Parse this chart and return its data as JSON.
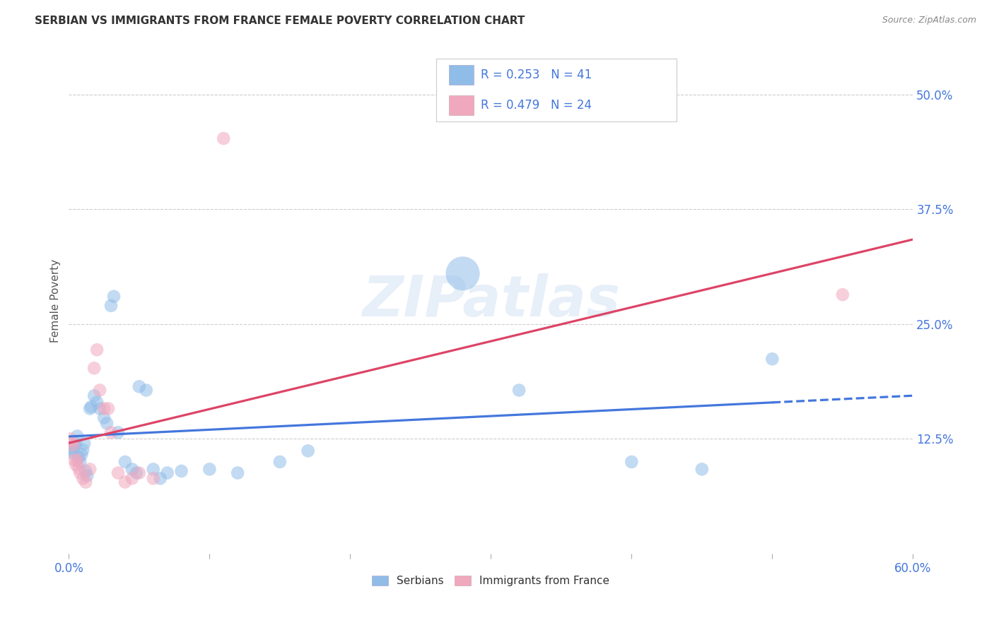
{
  "title": "SERBIAN VS IMMIGRANTS FROM FRANCE FEMALE POVERTY CORRELATION CHART",
  "source": "Source: ZipAtlas.com",
  "ylabel": "Female Poverty",
  "xlim": [
    0.0,
    0.6
  ],
  "ylim": [
    0.0,
    0.55
  ],
  "yticks": [
    0.125,
    0.25,
    0.375,
    0.5
  ],
  "ytick_labels": [
    "12.5%",
    "25.0%",
    "37.5%",
    "50.0%"
  ],
  "xticks": [
    0.0,
    0.1,
    0.2,
    0.3,
    0.4,
    0.5,
    0.6
  ],
  "xtick_labels": [
    "0.0%",
    "",
    "",
    "",
    "",
    "",
    "60.0%"
  ],
  "grid_color": "#cccccc",
  "background_color": "#ffffff",
  "serbian_color": "#90bce8",
  "french_color": "#f0a8be",
  "trend_serbian_color": "#4477dd",
  "trend_french_color": "#dd4466",
  "tick_label_color": "#4477dd",
  "watermark_text": "ZIPatlas",
  "serbian_points": [
    [
      0.002,
      0.115
    ],
    [
      0.003,
      0.112
    ],
    [
      0.004,
      0.118
    ],
    [
      0.005,
      0.12
    ],
    [
      0.006,
      0.128
    ],
    [
      0.007,
      0.105
    ],
    [
      0.008,
      0.1
    ],
    [
      0.009,
      0.108
    ],
    [
      0.01,
      0.113
    ],
    [
      0.011,
      0.12
    ],
    [
      0.012,
      0.09
    ],
    [
      0.013,
      0.085
    ],
    [
      0.015,
      0.158
    ],
    [
      0.016,
      0.16
    ],
    [
      0.018,
      0.172
    ],
    [
      0.02,
      0.165
    ],
    [
      0.022,
      0.158
    ],
    [
      0.025,
      0.148
    ],
    [
      0.027,
      0.142
    ],
    [
      0.03,
      0.27
    ],
    [
      0.032,
      0.28
    ],
    [
      0.035,
      0.132
    ],
    [
      0.04,
      0.1
    ],
    [
      0.045,
      0.092
    ],
    [
      0.048,
      0.088
    ],
    [
      0.05,
      0.182
    ],
    [
      0.055,
      0.178
    ],
    [
      0.06,
      0.092
    ],
    [
      0.065,
      0.082
    ],
    [
      0.07,
      0.088
    ],
    [
      0.08,
      0.09
    ],
    [
      0.1,
      0.092
    ],
    [
      0.12,
      0.088
    ],
    [
      0.15,
      0.1
    ],
    [
      0.17,
      0.112
    ],
    [
      0.28,
      0.305
    ],
    [
      0.32,
      0.178
    ],
    [
      0.4,
      0.1
    ],
    [
      0.45,
      0.092
    ],
    [
      0.5,
      0.212
    ],
    [
      0.001,
      0.11
    ]
  ],
  "french_points": [
    [
      0.002,
      0.122
    ],
    [
      0.003,
      0.118
    ],
    [
      0.004,
      0.102
    ],
    [
      0.005,
      0.097
    ],
    [
      0.006,
      0.102
    ],
    [
      0.007,
      0.093
    ],
    [
      0.008,
      0.088
    ],
    [
      0.01,
      0.082
    ],
    [
      0.012,
      0.078
    ],
    [
      0.015,
      0.092
    ],
    [
      0.018,
      0.202
    ],
    [
      0.02,
      0.222
    ],
    [
      0.022,
      0.178
    ],
    [
      0.025,
      0.158
    ],
    [
      0.028,
      0.158
    ],
    [
      0.03,
      0.132
    ],
    [
      0.035,
      0.088
    ],
    [
      0.04,
      0.078
    ],
    [
      0.045,
      0.082
    ],
    [
      0.05,
      0.088
    ],
    [
      0.06,
      0.082
    ],
    [
      0.001,
      0.125
    ],
    [
      0.11,
      0.452
    ],
    [
      0.55,
      0.282
    ]
  ],
  "point_size": 180,
  "big_serbian_idx": 35,
  "big_serbian_size": 1200
}
